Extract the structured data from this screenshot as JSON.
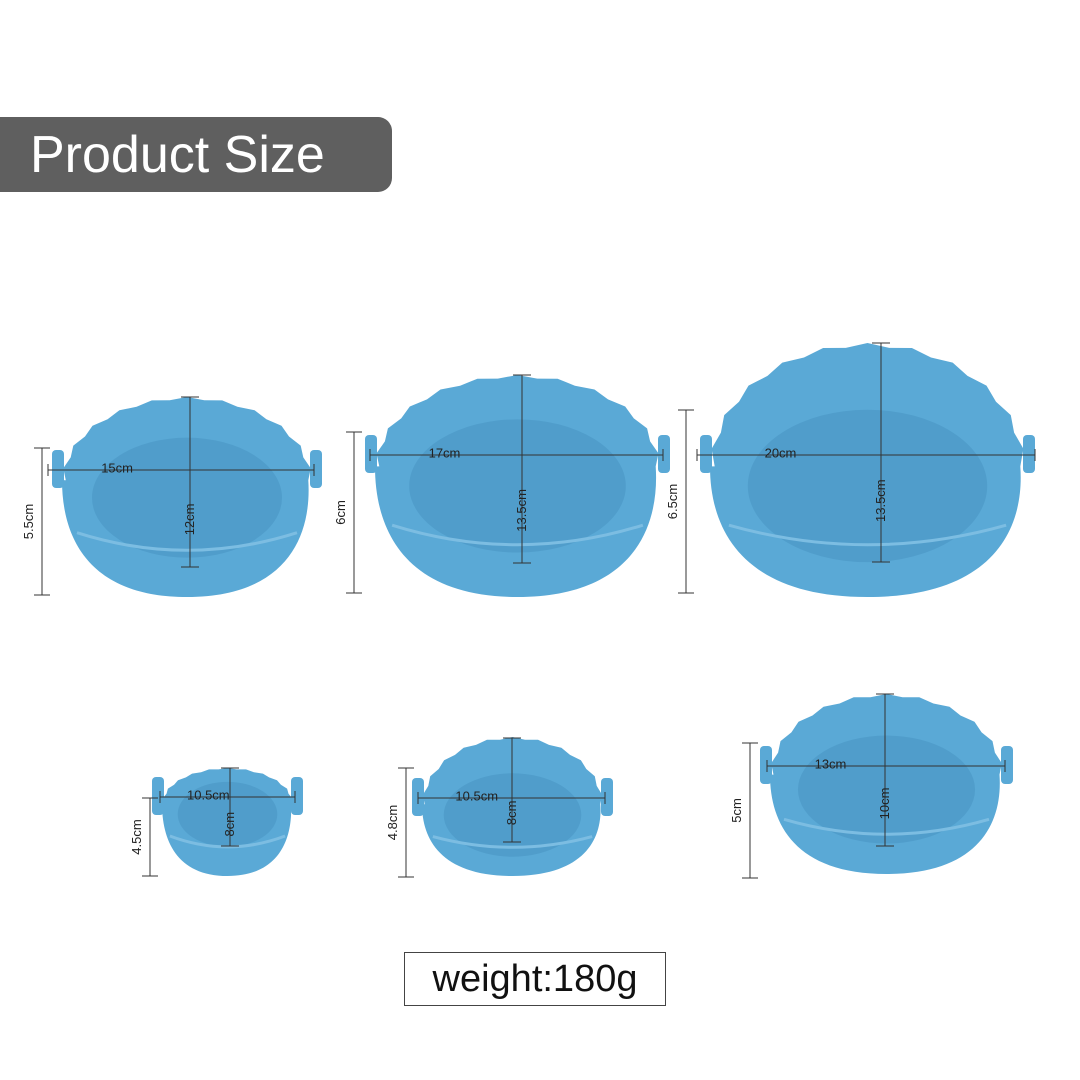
{
  "title": "Product Size",
  "weight": "weight:180g",
  "colors": {
    "basket": "#5aa9d6",
    "basket_inner": "#4b98c6",
    "title_bg": "#5f5f5f"
  },
  "baskets": [
    {
      "width": "15cm",
      "depth": "12cm",
      "height": "5.5cm"
    },
    {
      "width": "17cm",
      "depth": "13.5cm",
      "height": "6cm"
    },
    {
      "width": "20cm",
      "depth": "13.5cm",
      "height": "6.5cm"
    },
    {
      "width": "10.5cm",
      "depth": "8cm",
      "height": "4.5cm"
    },
    {
      "width": "10.5cm",
      "depth": "8cm",
      "height": "4.8cm"
    },
    {
      "width": "13cm",
      "depth": "10cm",
      "height": "5cm"
    }
  ]
}
